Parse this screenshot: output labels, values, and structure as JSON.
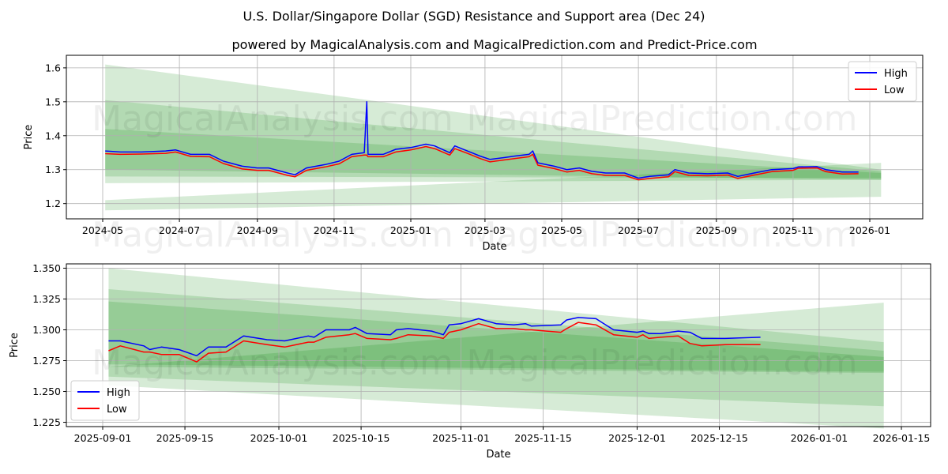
{
  "title": "U.S. Dollar/Singapore Dollar (SGD) Resistance and Support area (Dec 24)",
  "subtitle": "powered by MagicalAnalysis.com and MagicalPrediction.com and Predict-Price.com",
  "watermarks": [
    "MagicalAnalysis.com",
    "MagicalPrediction.com"
  ],
  "colors": {
    "high": "#0000ff",
    "low": "#ff0000",
    "band": "#008000"
  },
  "chart_data": [
    {
      "type": "line",
      "xlabel": "Date",
      "ylabel": "Price",
      "xticks": [
        "2024-05",
        "2024-07",
        "2024-09",
        "2024-11",
        "2025-01",
        "2025-03",
        "2025-05",
        "2025-07",
        "2025-09",
        "2025-11",
        "2026-01"
      ],
      "xtick_dates": [
        "2024-05-01",
        "2024-07-01",
        "2024-09-01",
        "2024-11-01",
        "2025-01-01",
        "2025-03-01",
        "2025-05-01",
        "2025-07-01",
        "2025-09-01",
        "2025-11-01",
        "2026-01-01"
      ],
      "yticks": [
        "1.2",
        "1.3",
        "1.4",
        "1.5",
        "1.6"
      ],
      "ylim": [
        1.155,
        1.637
      ],
      "grid": true,
      "legend": {
        "position": "top-right",
        "entries": [
          "High",
          "Low"
        ]
      },
      "band_range": [
        "2024-05-03",
        "2026-01-10"
      ],
      "bands": [
        {
          "upper": [
            1.61,
            1.3
          ],
          "lower": [
            1.26,
            1.27
          ]
        },
        {
          "upper": [
            1.505,
            1.295
          ],
          "lower": [
            1.28,
            1.275
          ]
        },
        {
          "upper": [
            1.42,
            1.29
          ],
          "lower": [
            1.3,
            1.27
          ]
        },
        {
          "upper": [
            1.21,
            1.32
          ],
          "lower": [
            1.18,
            1.22
          ]
        }
      ],
      "x": [
        "2024-05-03",
        "2024-05-15",
        "2024-06-01",
        "2024-06-20",
        "2024-06-28",
        "2024-07-10",
        "2024-07-25",
        "2024-08-05",
        "2024-08-20",
        "2024-09-01",
        "2024-09-10",
        "2024-09-25",
        "2024-10-01",
        "2024-10-10",
        "2024-10-25",
        "2024-11-05",
        "2024-11-15",
        "2024-11-25",
        "2024-11-27",
        "2024-11-28",
        "2024-12-10",
        "2024-12-20",
        "2025-01-01",
        "2025-01-13",
        "2025-01-20",
        "2025-02-01",
        "2025-02-05",
        "2025-02-15",
        "2025-02-25",
        "2025-03-05",
        "2025-03-15",
        "2025-03-25",
        "2025-04-05",
        "2025-04-08",
        "2025-04-12",
        "2025-04-25",
        "2025-05-05",
        "2025-05-15",
        "2025-05-25",
        "2025-06-05",
        "2025-06-20",
        "2025-07-01",
        "2025-07-10",
        "2025-07-25",
        "2025-07-30",
        "2025-08-10",
        "2025-08-25",
        "2025-09-10",
        "2025-09-18",
        "2025-10-01",
        "2025-10-15",
        "2025-11-01",
        "2025-11-05",
        "2025-11-20",
        "2025-11-27",
        "2025-12-10",
        "2025-12-23"
      ],
      "series": [
        {
          "name": "High",
          "values": [
            1.355,
            1.352,
            1.352,
            1.355,
            1.358,
            1.345,
            1.345,
            1.325,
            1.31,
            1.305,
            1.305,
            1.29,
            1.285,
            1.305,
            1.315,
            1.325,
            1.345,
            1.35,
            1.5,
            1.345,
            1.345,
            1.36,
            1.365,
            1.375,
            1.37,
            1.35,
            1.37,
            1.355,
            1.34,
            1.33,
            1.335,
            1.34,
            1.345,
            1.355,
            1.32,
            1.31,
            1.3,
            1.305,
            1.295,
            1.29,
            1.29,
            1.275,
            1.28,
            1.285,
            1.3,
            1.29,
            1.288,
            1.29,
            1.28,
            1.29,
            1.3,
            1.303,
            1.308,
            1.309,
            1.3,
            1.293,
            1.293
          ]
        },
        {
          "name": "Low",
          "values": [
            1.347,
            1.345,
            1.346,
            1.348,
            1.352,
            1.339,
            1.338,
            1.318,
            1.302,
            1.298,
            1.298,
            1.283,
            1.279,
            1.298,
            1.308,
            1.317,
            1.338,
            1.343,
            1.343,
            1.338,
            1.338,
            1.352,
            1.358,
            1.368,
            1.362,
            1.343,
            1.362,
            1.348,
            1.333,
            1.323,
            1.328,
            1.333,
            1.338,
            1.345,
            1.313,
            1.303,
            1.293,
            1.298,
            1.288,
            1.283,
            1.283,
            1.27,
            1.274,
            1.279,
            1.294,
            1.283,
            1.282,
            1.284,
            1.274,
            1.284,
            1.294,
            1.298,
            1.304,
            1.305,
            1.294,
            1.287,
            1.288
          ]
        }
      ]
    },
    {
      "type": "line",
      "xlabel": "Date",
      "ylabel": "Price",
      "xticks": [
        "2025-09-01",
        "2025-09-15",
        "2025-10-01",
        "2025-10-15",
        "2025-11-01",
        "2025-11-15",
        "2025-12-01",
        "2025-12-15",
        "2026-01-01",
        "2026-01-15"
      ],
      "yticks": [
        "1.225",
        "1.250",
        "1.275",
        "1.300",
        "1.325",
        "1.350"
      ],
      "ylim": [
        1.2215,
        1.3535
      ],
      "grid": true,
      "legend": {
        "position": "bottom-left",
        "entries": [
          "High",
          "Low"
        ]
      },
      "band_range": [
        "2025-09-02",
        "2026-01-12"
      ],
      "bands": [
        {
          "upper": [
            1.35,
            1.29
          ],
          "lower": [
            1.255,
            1.22
          ]
        },
        {
          "upper": [
            1.333,
            1.283
          ],
          "lower": [
            1.262,
            1.238
          ]
        },
        {
          "upper": [
            1.323,
            1.278
          ],
          "lower": [
            1.272,
            1.266
          ]
        },
        {
          "upper": [
            1.27,
            1.322
          ],
          "lower": [
            1.27,
            1.265
          ]
        }
      ],
      "x": [
        "2025-09-02",
        "2025-09-04",
        "2025-09-08",
        "2025-09-09",
        "2025-09-11",
        "2025-09-14",
        "2025-09-17",
        "2025-09-19",
        "2025-09-22",
        "2025-09-25",
        "2025-09-29",
        "2025-10-02",
        "2025-10-06",
        "2025-10-07",
        "2025-10-09",
        "2025-10-13",
        "2025-10-14",
        "2025-10-16",
        "2025-10-20",
        "2025-10-21",
        "2025-10-23",
        "2025-10-27",
        "2025-10-29",
        "2025-10-30",
        "2025-11-01",
        "2025-11-04",
        "2025-11-07",
        "2025-11-10",
        "2025-11-12",
        "2025-11-13",
        "2025-11-18",
        "2025-11-19",
        "2025-11-21",
        "2025-11-24",
        "2025-11-27",
        "2025-12-01",
        "2025-12-02",
        "2025-12-03",
        "2025-12-05",
        "2025-12-08",
        "2025-12-10",
        "2025-12-12",
        "2025-12-16",
        "2025-12-22"
      ],
      "series": [
        {
          "name": "High",
          "values": [
            1.291,
            1.291,
            1.287,
            1.284,
            1.286,
            1.284,
            1.279,
            1.286,
            1.286,
            1.295,
            1.292,
            1.291,
            1.295,
            1.294,
            1.3,
            1.3,
            1.302,
            1.297,
            1.296,
            1.3,
            1.301,
            1.299,
            1.296,
            1.304,
            1.305,
            1.309,
            1.305,
            1.304,
            1.305,
            1.303,
            1.304,
            1.308,
            1.31,
            1.309,
            1.3,
            1.298,
            1.299,
            1.297,
            1.297,
            1.299,
            1.298,
            1.293,
            1.293,
            1.294
          ]
        },
        {
          "name": "Low",
          "values": [
            1.283,
            1.287,
            1.282,
            1.282,
            1.28,
            1.28,
            1.274,
            1.281,
            1.282,
            1.291,
            1.288,
            1.286,
            1.29,
            1.29,
            1.294,
            1.296,
            1.297,
            1.293,
            1.292,
            1.293,
            1.296,
            1.295,
            1.293,
            1.298,
            1.3,
            1.305,
            1.301,
            1.301,
            1.3,
            1.3,
            1.298,
            1.301,
            1.306,
            1.304,
            1.296,
            1.294,
            1.296,
            1.293,
            1.294,
            1.295,
            1.289,
            1.287,
            1.288,
            1.288
          ]
        }
      ]
    }
  ]
}
